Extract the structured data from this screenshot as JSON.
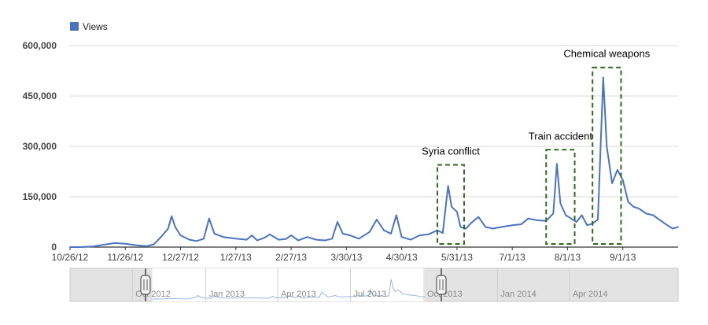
{
  "chart_data": {
    "type": "line",
    "legend": {
      "position": "top-left",
      "entries": [
        "Views"
      ]
    },
    "series": [
      {
        "name": "Views",
        "color": "#4a74c2",
        "points": [
          [
            "10/26/12",
            0
          ],
          [
            "11/1/12",
            0
          ],
          [
            "11/8/12",
            2000
          ],
          [
            "11/15/12",
            8000
          ],
          [
            "11/20/12",
            12000
          ],
          [
            "11/26/12",
            10000
          ],
          [
            "12/3/12",
            5000
          ],
          [
            "12/8/12",
            3000
          ],
          [
            "12/12/12",
            8000
          ],
          [
            "12/16/12",
            30000
          ],
          [
            "12/20/12",
            55000
          ],
          [
            "12/22/12",
            92000
          ],
          [
            "12/24/12",
            60000
          ],
          [
            "12/27/12",
            35000
          ],
          [
            "1/1/13",
            22000
          ],
          [
            "1/5/13",
            18000
          ],
          [
            "1/9/13",
            25000
          ],
          [
            "1/12/13",
            85000
          ],
          [
            "1/15/13",
            40000
          ],
          [
            "1/20/13",
            30000
          ],
          [
            "1/27/13",
            25000
          ],
          [
            "2/2/13",
            22000
          ],
          [
            "2/5/13",
            35000
          ],
          [
            "2/8/13",
            20000
          ],
          [
            "2/12/13",
            28000
          ],
          [
            "2/15/13",
            38000
          ],
          [
            "2/20/13",
            22000
          ],
          [
            "2/24/13",
            24000
          ],
          [
            "2/27/13",
            35000
          ],
          [
            "3/3/13",
            20000
          ],
          [
            "3/8/13",
            30000
          ],
          [
            "3/13/13",
            22000
          ],
          [
            "3/18/13",
            20000
          ],
          [
            "3/22/13",
            25000
          ],
          [
            "3/25/13",
            75000
          ],
          [
            "3/28/13",
            40000
          ],
          [
            "4/1/13",
            35000
          ],
          [
            "4/6/13",
            25000
          ],
          [
            "4/12/13",
            45000
          ],
          [
            "4/16/13",
            82000
          ],
          [
            "4/20/13",
            50000
          ],
          [
            "4/24/13",
            40000
          ],
          [
            "4/27/13",
            95000
          ],
          [
            "4/30/13",
            30000
          ],
          [
            "5/5/13",
            22000
          ],
          [
            "5/10/13",
            35000
          ],
          [
            "5/15/13",
            38000
          ],
          [
            "5/20/13",
            50000
          ],
          [
            "5/23/13",
            42000
          ],
          [
            "5/26/13",
            182000
          ],
          [
            "5/28/13",
            120000
          ],
          [
            "5/31/13",
            105000
          ],
          [
            "6/2/13",
            60000
          ],
          [
            "6/5/13",
            55000
          ],
          [
            "6/8/13",
            72000
          ],
          [
            "6/12/13",
            90000
          ],
          [
            "6/16/13",
            60000
          ],
          [
            "6/20/13",
            55000
          ],
          [
            "6/25/13",
            60000
          ],
          [
            "7/1/13",
            65000
          ],
          [
            "7/6/13",
            68000
          ],
          [
            "7/10/13",
            85000
          ],
          [
            "7/15/13",
            80000
          ],
          [
            "7/20/13",
            78000
          ],
          [
            "7/24/13",
            100000
          ],
          [
            "7/26/13",
            248000
          ],
          [
            "7/28/13",
            130000
          ],
          [
            "7/31/13",
            95000
          ],
          [
            "8/3/13",
            85000
          ],
          [
            "8/6/13",
            75000
          ],
          [
            "8/9/13",
            95000
          ],
          [
            "8/12/13",
            65000
          ],
          [
            "8/15/13",
            70000
          ],
          [
            "8/18/13",
            82000
          ],
          [
            "8/21/13",
            505000
          ],
          [
            "8/23/13",
            300000
          ],
          [
            "8/26/13",
            190000
          ],
          [
            "8/29/13",
            230000
          ],
          [
            "9/1/13",
            200000
          ],
          [
            "9/4/13",
            135000
          ],
          [
            "9/7/13",
            120000
          ],
          [
            "9/10/13",
            115000
          ],
          [
            "9/14/13",
            100000
          ],
          [
            "9/18/13",
            95000
          ],
          [
            "9/22/13",
            80000
          ],
          [
            "9/26/13",
            65000
          ],
          [
            "9/29/13",
            55000
          ],
          [
            "10/2/13",
            60000
          ]
        ]
      }
    ],
    "x_axis": {
      "type": "date",
      "range": [
        "10/26/12",
        "10/2/13"
      ],
      "ticks": [
        "10/26/12",
        "11/26/12",
        "12/27/12",
        "1/27/13",
        "2/27/13",
        "3/30/13",
        "4/30/13",
        "5/31/13",
        "7/1/13",
        "8/1/13",
        "9/1/13"
      ]
    },
    "y_axis": {
      "range": [
        0,
        600000
      ],
      "ticks": [
        0,
        150000,
        300000,
        450000,
        600000
      ],
      "tick_labels": [
        "0",
        "150,000",
        "300,000",
        "450,000",
        "600,000"
      ]
    },
    "grid": true,
    "annotations": [
      {
        "label": "Syria conflict",
        "from": "5/20/13",
        "to": "6/4/13",
        "ymax": 245000
      },
      {
        "label": "Train accident",
        "from": "7/20/13",
        "to": "8/5/13",
        "ymax": 290000
      },
      {
        "label": "Chemical weapons",
        "from": "8/15/13",
        "to": "8/31/13",
        "ymax": 535000
      }
    ],
    "navigator": {
      "labels": [
        "Oct 2012",
        "Jan 2013",
        "Apr 2013",
        "Jul 2013",
        "Oct 2013",
        "Jan 2014",
        "Apr 2014"
      ],
      "selection": [
        "10/26/12",
        "10/2/13"
      ]
    }
  }
}
